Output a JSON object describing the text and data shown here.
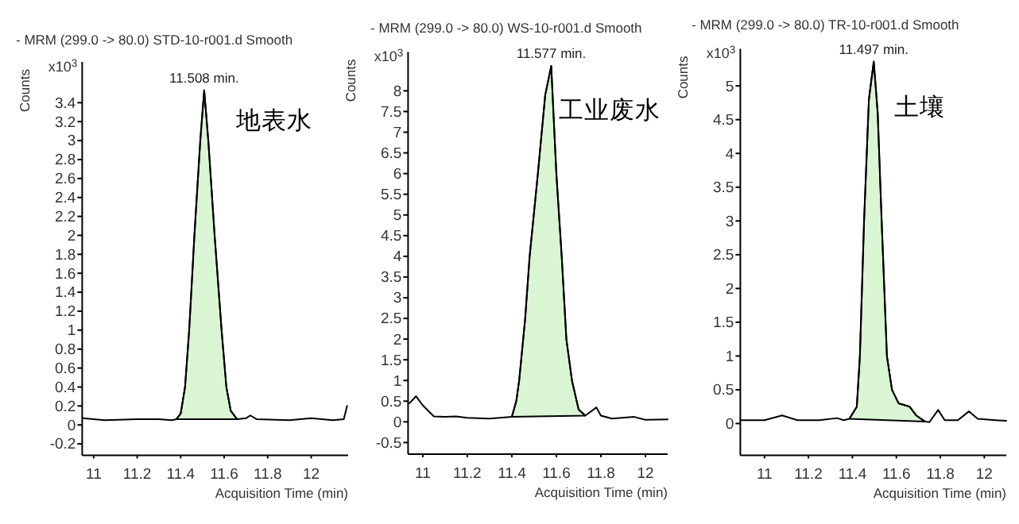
{
  "chart_data": [
    {
      "type": "line",
      "title": "- MRM (299.0 -> 80.0) STD-10-r001.d  Smooth",
      "xlabel": "Acquisition Time (min)",
      "ylabel": "Counts",
      "annotations": [
        "x10$^{3}$",
        {
          "text": "11.508 min.",
          "x": 11.508,
          "y": 3.53
        },
        "地表水"
      ],
      "xlim": [
        10.947,
        12.17
      ],
      "ylim": [
        -0.32,
        3.83
      ],
      "xticks": [
        11,
        11.2,
        11.4,
        11.6,
        11.8,
        12
      ],
      "yticks": [
        -0.2,
        0,
        0.2,
        0.4,
        0.6,
        0.8,
        1,
        1.2,
        1.4,
        1.6,
        1.8,
        2,
        2.2,
        2.4,
        2.6,
        2.8,
        3,
        3.2,
        3.4
      ],
      "series": [
        {
          "color": "#000000",
          "x": [
            10.95,
            11.05,
            11.2,
            11.3,
            11.36,
            11.38,
            11.4,
            11.42,
            11.439,
            11.463,
            11.49,
            11.508,
            11.527,
            11.556,
            11.588,
            11.61,
            11.63,
            11.66,
            11.7,
            11.72,
            11.75,
            11.9,
            12.0,
            12.1,
            12.15,
            12.165
          ],
          "values": [
            0.07,
            0.05,
            0.06,
            0.06,
            0.05,
            0.06,
            0.12,
            0.4,
            1.0,
            2.0,
            3.0,
            3.53,
            3.0,
            2.0,
            1.0,
            0.4,
            0.15,
            0.06,
            0.07,
            0.1,
            0.06,
            0.05,
            0.07,
            0.05,
            0.06,
            0.2
          ]
        },
        {
          "type": "area",
          "color": "#d9f5d3",
          "x": [
            11.38,
            11.4,
            11.42,
            11.439,
            11.463,
            11.49,
            11.508,
            11.527,
            11.556,
            11.588,
            11.61,
            11.63,
            11.66
          ],
          "values": [
            0.06,
            0.12,
            0.4,
            1.0,
            2.0,
            3.0,
            3.53,
            3.0,
            2.0,
            1.0,
            0.4,
            0.15,
            0.06
          ]
        }
      ]
    },
    {
      "type": "line",
      "title": "- MRM (299.0 -> 80.0) WS-10-r001.d  Smooth",
      "xlabel": "Acquisition Time (min)",
      "ylabel": "Counts",
      "annotations": [
        "x10$^{3}$",
        {
          "text": "11.577 min.",
          "x": 11.577,
          "y": 8.6
        },
        "工业废水"
      ],
      "xlim": [
        10.934,
        12.1
      ],
      "ylim": [
        -0.78,
        8.94
      ],
      "xticks": [
        11,
        11.2,
        11.4,
        11.6,
        11.8,
        12
      ],
      "yticks": [
        -0.5,
        0,
        0.5,
        1,
        1.5,
        2,
        2.5,
        3,
        3.5,
        4,
        4.5,
        5,
        5.5,
        6,
        6.5,
        7,
        7.5,
        8
      ],
      "series": [
        {
          "color": "#000000",
          "x": [
            10.94,
            10.97,
            11.0,
            11.05,
            11.1,
            11.15,
            11.2,
            11.3,
            11.4,
            11.42,
            11.433,
            11.46,
            11.48,
            11.517,
            11.55,
            11.577,
            11.6,
            11.624,
            11.645,
            11.67,
            11.7,
            11.73,
            11.78,
            11.8,
            11.85,
            11.95,
            12.0,
            12.1
          ],
          "values": [
            0.45,
            0.62,
            0.4,
            0.13,
            0.12,
            0.13,
            0.1,
            0.08,
            0.12,
            0.5,
            1.0,
            2.5,
            4.0,
            6.0,
            7.9,
            8.6,
            6.0,
            4.0,
            2.0,
            1.0,
            0.3,
            0.15,
            0.35,
            0.15,
            0.08,
            0.12,
            0.05,
            0.06
          ]
        },
        {
          "type": "area",
          "color": "#d9f5d3",
          "x": [
            11.4,
            11.42,
            11.433,
            11.46,
            11.48,
            11.517,
            11.55,
            11.577,
            11.6,
            11.624,
            11.645,
            11.67,
            11.7,
            11.73
          ],
          "values": [
            0.12,
            0.5,
            1.0,
            2.5,
            4.0,
            6.0,
            7.9,
            8.6,
            6.0,
            4.0,
            2.0,
            1.0,
            0.3,
            0.15
          ]
        }
      ]
    },
    {
      "type": "line",
      "title": "- MRM (299.0 -> 80.0) TR-10-r001.d  Smooth",
      "xlabel": "Acquisition Time (min)",
      "ylabel": "Counts",
      "annotations": [
        "x10$^{3}$",
        {
          "text": "11.497 min.",
          "x": 11.497,
          "y": 5.36
        },
        "土壤"
      ],
      "xlim": [
        10.89,
        12.1
      ],
      "ylim": [
        -0.47,
        5.55
      ],
      "xticks": [
        11,
        11.2,
        11.4,
        11.6,
        11.8,
        12
      ],
      "yticks": [
        0,
        0.5,
        1,
        1.5,
        2,
        2.5,
        3,
        3.5,
        4,
        4.5,
        5
      ],
      "series": [
        {
          "color": "#000000",
          "x": [
            10.89,
            11.0,
            11.08,
            11.15,
            11.25,
            11.33,
            11.36,
            11.386,
            11.42,
            11.434,
            11.453,
            11.475,
            11.497,
            11.515,
            11.533,
            11.557,
            11.58,
            11.61,
            11.64,
            11.66,
            11.69,
            11.73,
            11.75,
            11.79,
            11.82,
            11.88,
            11.93,
            11.97,
            12.05,
            12.1
          ],
          "values": [
            0.05,
            0.05,
            0.12,
            0.05,
            0.05,
            0.08,
            0.05,
            0.07,
            0.25,
            1.0,
            3.0,
            4.8,
            5.36,
            4.6,
            3.0,
            1.0,
            0.5,
            0.3,
            0.27,
            0.25,
            0.12,
            0.03,
            0.02,
            0.2,
            0.05,
            0.05,
            0.18,
            0.07,
            0.05,
            0.04
          ]
        },
        {
          "type": "area",
          "color": "#d9f5d3",
          "x": [
            11.386,
            11.42,
            11.434,
            11.453,
            11.475,
            11.497,
            11.515,
            11.533,
            11.557,
            11.58,
            11.61,
            11.64,
            11.66,
            11.69,
            11.73
          ],
          "values": [
            0.07,
            0.25,
            1.0,
            3.0,
            4.8,
            5.36,
            4.6,
            3.0,
            1.0,
            0.5,
            0.3,
            0.27,
            0.25,
            0.12,
            0.03
          ]
        }
      ]
    }
  ]
}
